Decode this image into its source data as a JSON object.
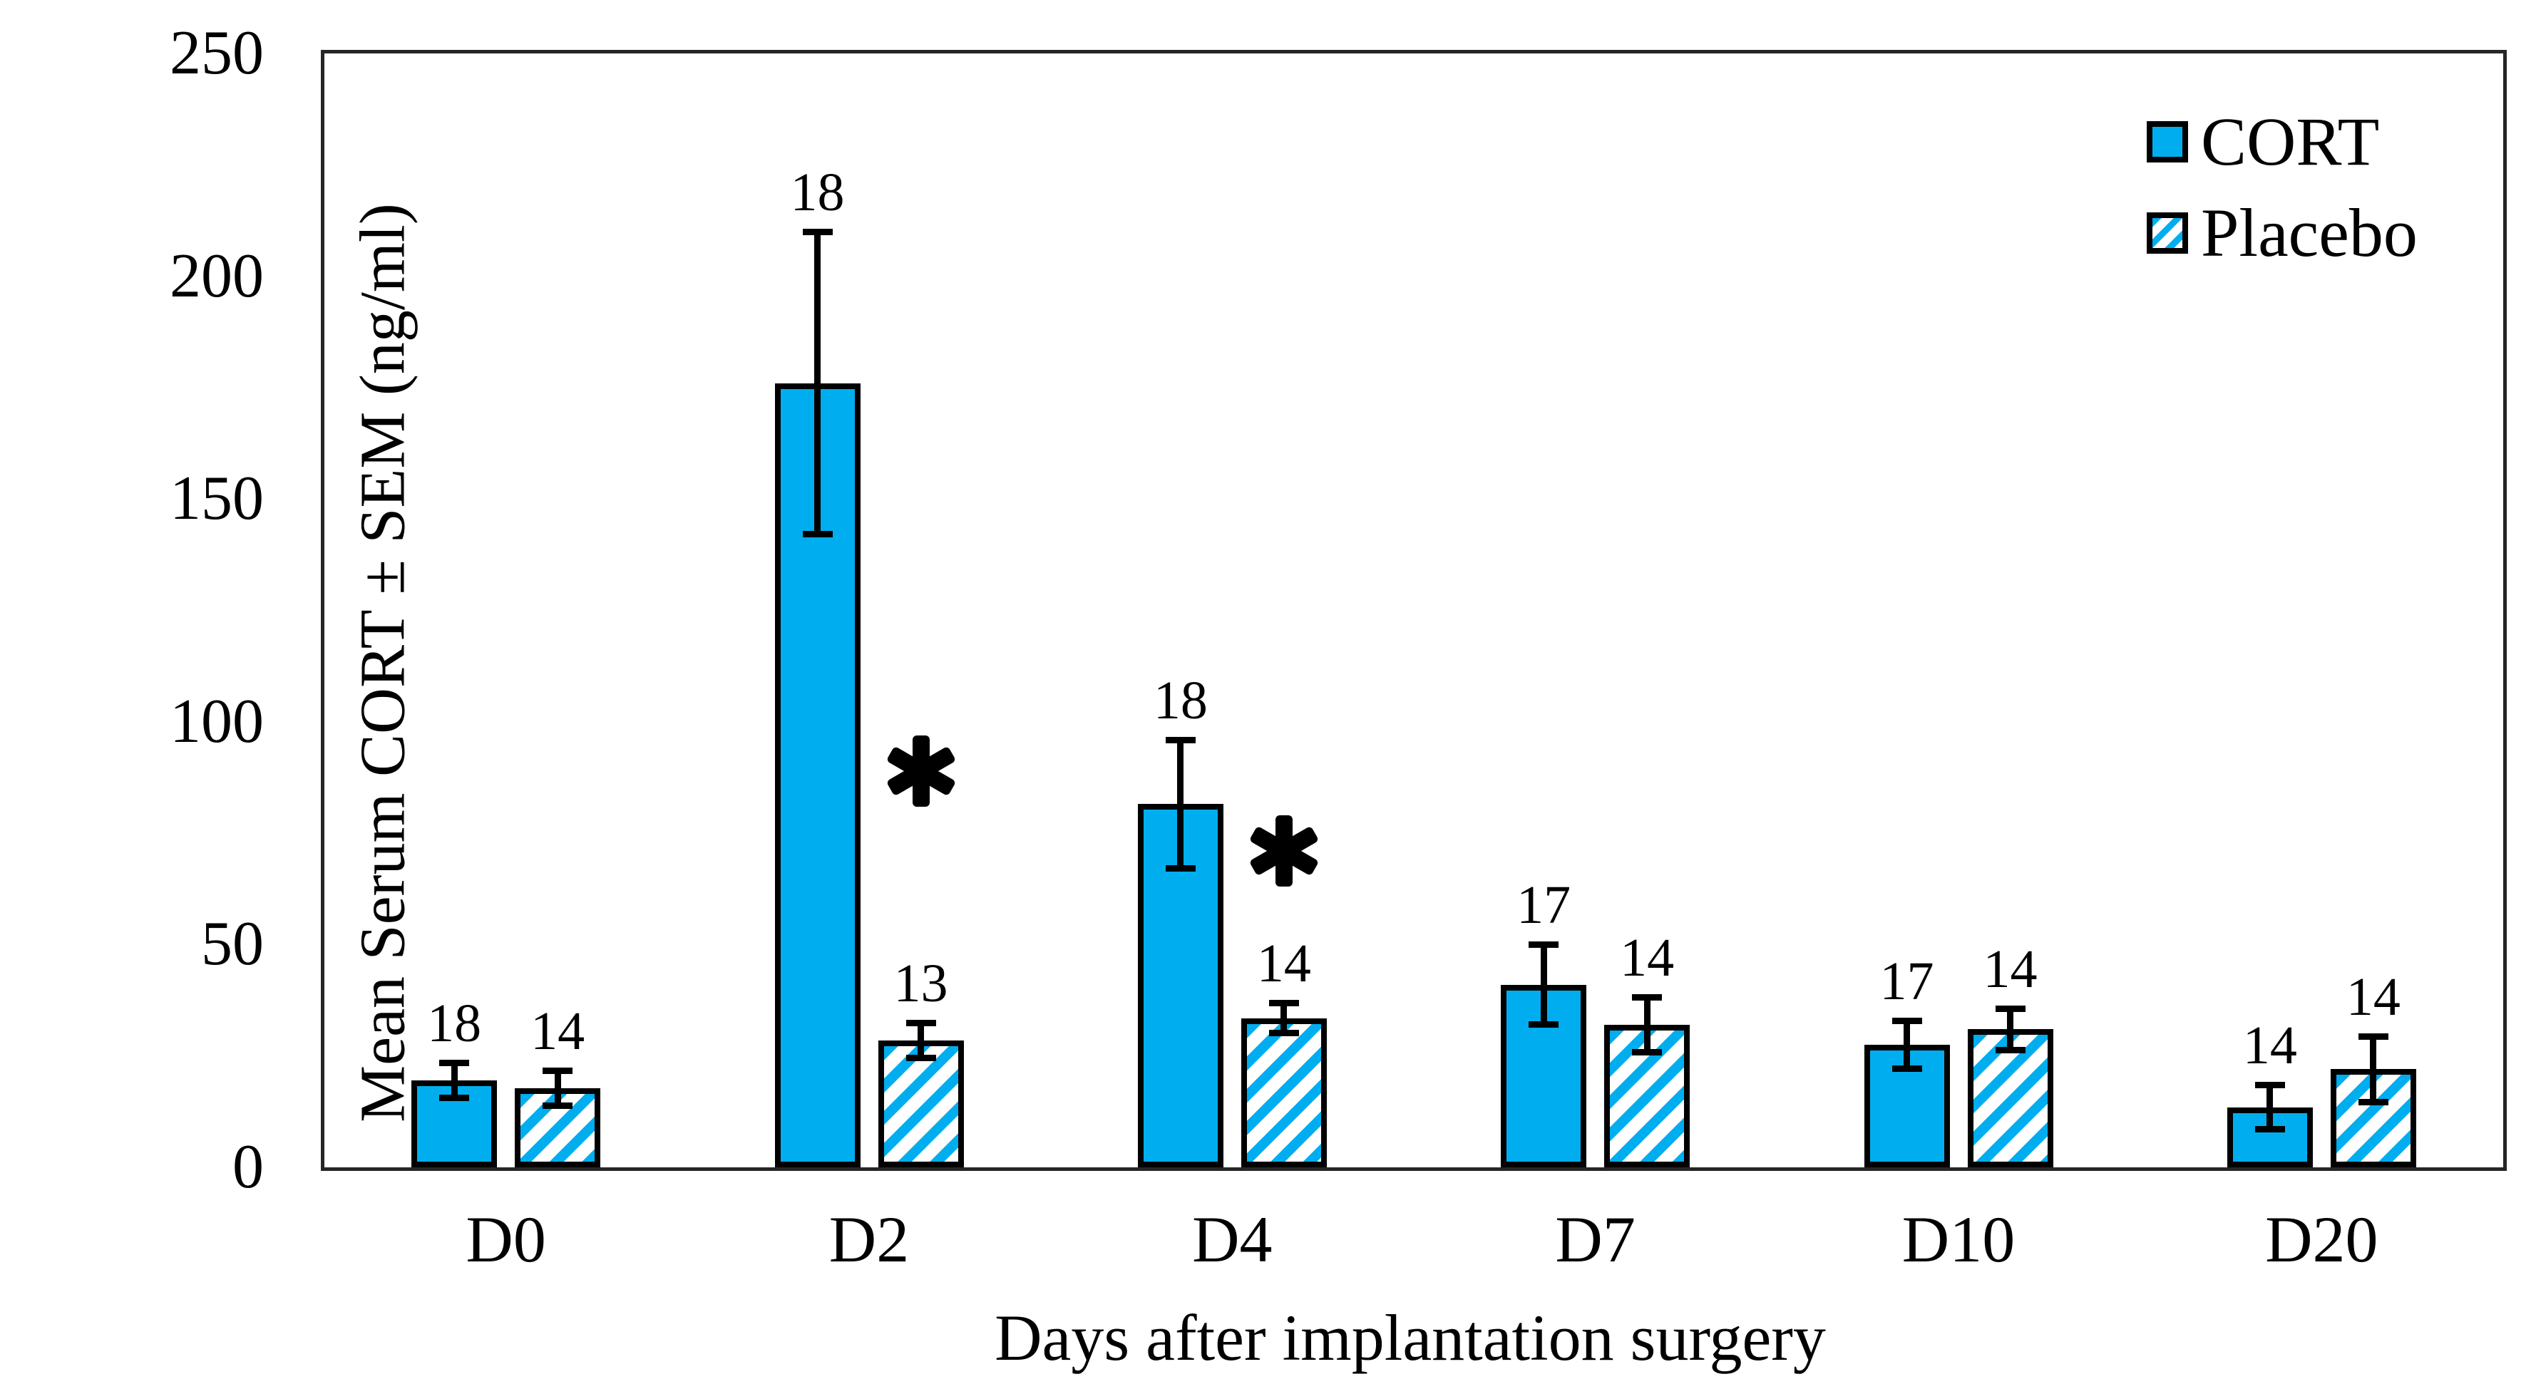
{
  "chart_data": {
    "type": "bar",
    "title": "",
    "xlabel": "Days after implantation surgery",
    "ylabel": "Mean Serum CORT ± SEM (ng/ml)",
    "ylim": [
      0,
      250
    ],
    "yticks": [
      0,
      50,
      100,
      150,
      200,
      250
    ],
    "categories": [
      "D0",
      "D2",
      "D4",
      "D7",
      "D10",
      "D20"
    ],
    "grid": false,
    "bar_color": "#00AEEF",
    "series": [
      {
        "name": "CORT",
        "style": "solid",
        "color": "#00AEEF",
        "values": [
          19.5,
          176,
          81.5,
          41,
          27.5,
          13.5
        ],
        "sem": [
          4,
          34,
          14.5,
          9,
          5.5,
          5
        ],
        "n": [
          18,
          18,
          18,
          17,
          17,
          14
        ]
      },
      {
        "name": "Placebo",
        "style": "hatched",
        "color": "#00AEEF",
        "values": [
          17.8,
          28.5,
          33.5,
          32,
          31,
          22
        ],
        "sem": [
          4,
          4,
          3.5,
          6.3,
          4.7,
          7.5
        ],
        "n": [
          14,
          13,
          14,
          14,
          14,
          14
        ]
      }
    ],
    "annotations": [
      {
        "symbol": "*",
        "category": "D2",
        "series": "Placebo",
        "y": 89
      },
      {
        "symbol": "*",
        "category": "D4",
        "series": "Placebo",
        "y": 71
      }
    ],
    "legend": {
      "position": "top-right"
    }
  }
}
